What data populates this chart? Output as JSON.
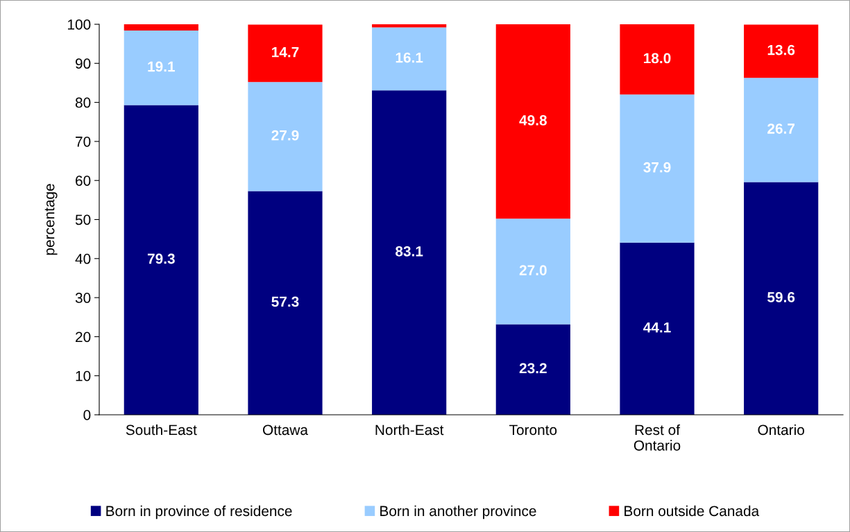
{
  "chart_data": {
    "type": "bar",
    "stacked": true,
    "ylabel": "percentage",
    "categories": [
      "South-East",
      "Ottawa",
      "North-East",
      "Toronto",
      "Rest of\nOntario",
      "Ontario"
    ],
    "series": [
      {
        "name": "Born in province of residence",
        "color": "#000080",
        "values": [
          79.3,
          57.3,
          83.1,
          23.2,
          44.1,
          59.6
        ],
        "value_labels": [
          "79.3",
          "57.3",
          "83.1",
          "23.2",
          "44.1",
          "59.6"
        ]
      },
      {
        "name": "Born in another province",
        "color": "#99ccff",
        "values": [
          19.1,
          27.9,
          16.1,
          27.0,
          37.9,
          26.7
        ],
        "value_labels": [
          "19.1",
          "27.9",
          "16.1",
          "27.0",
          "37.9",
          "26.7"
        ]
      },
      {
        "name": "Born outside Canada",
        "color": "#ff0000",
        "values": [
          1.6,
          14.7,
          0.8,
          49.8,
          18.0,
          13.6
        ],
        "value_labels": [
          null,
          "14.7",
          null,
          "49.8",
          "18.0",
          "13.6"
        ]
      }
    ],
    "ylim": [
      0,
      100
    ],
    "yticks": [
      0,
      10,
      20,
      30,
      40,
      50,
      60,
      70,
      80,
      90,
      100
    ],
    "grid": false,
    "legend": "bottom"
  }
}
